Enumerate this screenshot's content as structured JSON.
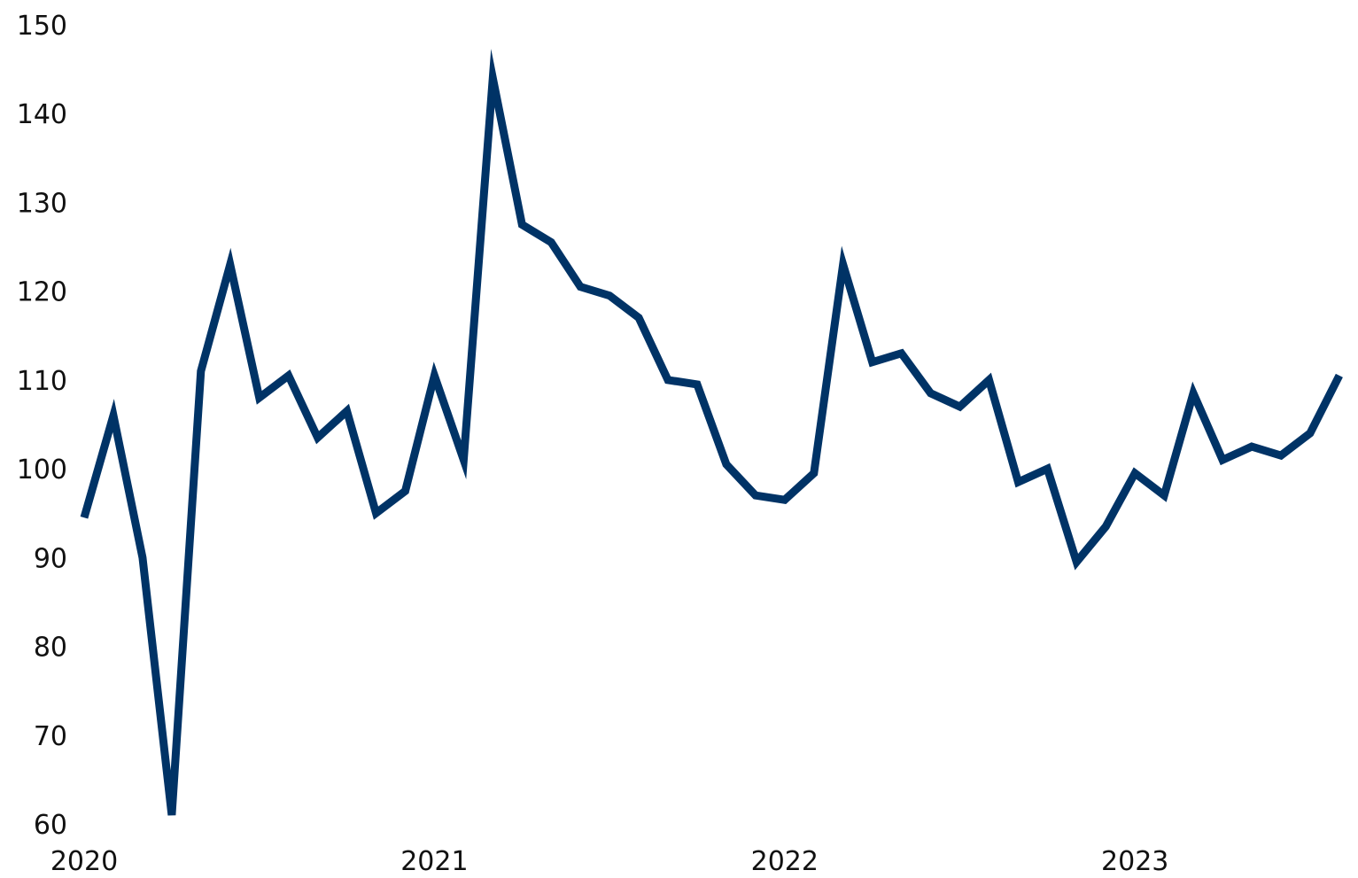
{
  "chart_data": {
    "type": "line",
    "title": "",
    "xlabel": "",
    "ylabel": "",
    "ylim": [
      60,
      150
    ],
    "yticks": [
      60,
      70,
      80,
      90,
      100,
      110,
      120,
      130,
      140,
      150
    ],
    "xticks": [
      "2020",
      "2021",
      "2022",
      "2023"
    ],
    "x_range": [
      "2020-01",
      "2023-08"
    ],
    "grid": false,
    "legend": "none",
    "color": "#003366",
    "series": [
      {
        "x": [
          "2020-01",
          "2020-02",
          "2020-03",
          "2020-04",
          "2020-05",
          "2020-06",
          "2020-07",
          "2020-08",
          "2020-09",
          "2020-10",
          "2020-11",
          "2020-12",
          "2021-01",
          "2021-02",
          "2021-03",
          "2021-04",
          "2021-05",
          "2021-06",
          "2021-07",
          "2021-08",
          "2021-09",
          "2021-10",
          "2021-11",
          "2021-12",
          "2022-01",
          "2022-02",
          "2022-03",
          "2022-04",
          "2022-05",
          "2022-06",
          "2022-07",
          "2022-08",
          "2022-09",
          "2022-10",
          "2022-11",
          "2022-12",
          "2023-01",
          "2023-02",
          "2023-03",
          "2023-04",
          "2023-05",
          "2023-06",
          "2023-07",
          "2023-08"
        ],
        "values": [
          94.5,
          106,
          90,
          61,
          111,
          123,
          108,
          110.5,
          103.5,
          106.5,
          95,
          97.5,
          110.5,
          101,
          144,
          127.5,
          125.5,
          120.5,
          119.5,
          117,
          110,
          109.5,
          100.5,
          97,
          96.5,
          99.5,
          123,
          112,
          113,
          108.5,
          107,
          110,
          98.5,
          100,
          89.5,
          93.5,
          99.5,
          97,
          108.5,
          101,
          102.5,
          101.5,
          104,
          110.5
        ]
      }
    ]
  }
}
